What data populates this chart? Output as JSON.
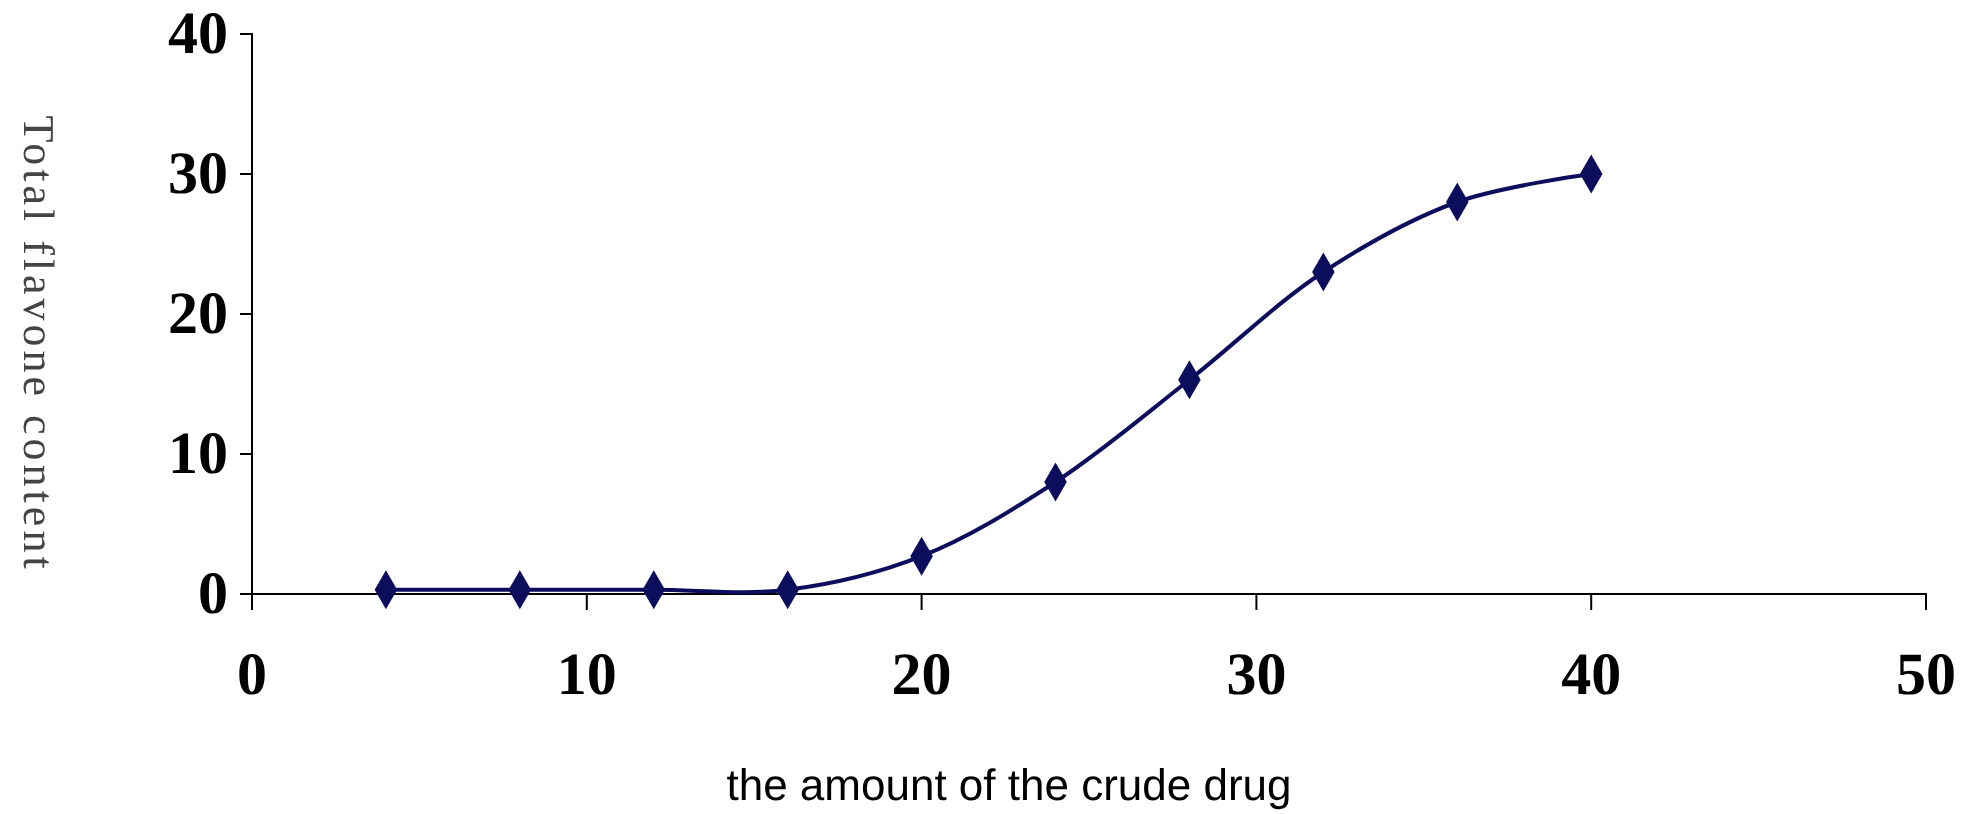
{
  "chart_data": {
    "type": "line",
    "xlabel": "the amount of the crude drug",
    "ylabel": "Total flavone content",
    "x": [
      4,
      8,
      12,
      16,
      20,
      24,
      28,
      32,
      36,
      40
    ],
    "series": [
      {
        "color": "#0d0d5e",
        "values": [
          0.3,
          0.3,
          0.3,
          0.3,
          2.7,
          8,
          15.3,
          23,
          28,
          30
        ]
      }
    ],
    "xlim": [
      0,
      50
    ],
    "xticks": [
      0,
      10,
      20,
      30,
      40,
      50
    ],
    "ylim": [
      0,
      40
    ],
    "yticks": [
      0,
      10,
      20,
      30,
      40
    ],
    "marker": "diamond",
    "line_style": "solid",
    "grid": false
  }
}
